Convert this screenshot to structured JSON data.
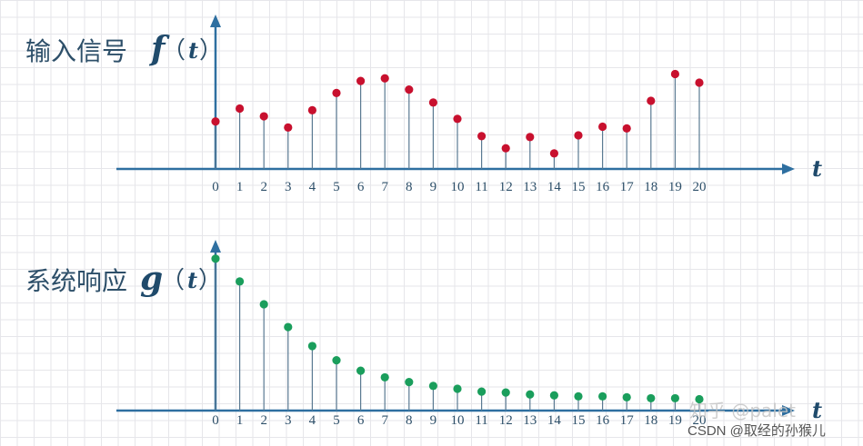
{
  "chart_data": [
    {
      "type": "stem",
      "title": "输入信号",
      "title_math": "f",
      "title_paren_open": "（",
      "title_var": "t",
      "title_paren_close": "）",
      "xlabel": "t",
      "x": [
        0,
        1,
        2,
        3,
        4,
        5,
        6,
        7,
        8,
        9,
        10,
        11,
        12,
        13,
        14,
        15,
        16,
        17,
        18,
        19,
        20
      ],
      "values": [
        5.5,
        7.0,
        6.1,
        4.8,
        6.8,
        8.8,
        10.2,
        10.5,
        9.2,
        7.7,
        5.8,
        3.8,
        2.4,
        3.7,
        1.8,
        3.9,
        4.9,
        4.7,
        7.9,
        11.0,
        10.0
      ],
      "ylim": [
        0,
        12
      ],
      "color": "#c8102e",
      "stem_color": "#5a7a92",
      "axis_color": "#2e6fa0",
      "grid": true
    },
    {
      "type": "stem",
      "title": "系统响应",
      "title_math": "g",
      "title_paren_open": "（",
      "title_var": "t",
      "title_paren_close": "）",
      "xlabel": "t",
      "x": [
        0,
        1,
        2,
        3,
        4,
        5,
        6,
        7,
        8,
        9,
        10,
        11,
        12,
        13,
        14,
        15,
        16,
        17,
        18,
        19,
        20
      ],
      "values": [
        16.0,
        13.6,
        11.2,
        8.8,
        6.8,
        5.3,
        4.2,
        3.5,
        3.0,
        2.6,
        2.3,
        2.0,
        1.9,
        1.7,
        1.6,
        1.5,
        1.5,
        1.4,
        1.3,
        1.3,
        1.2
      ],
      "ylim": [
        0,
        17
      ],
      "color": "#1a9e5c",
      "stem_color": "#5a7a92",
      "axis_color": "#2e6fa0",
      "grid": true
    }
  ],
  "watermarks": {
    "zhihu": "知乎 @palet",
    "csdn": "CSDN @取经的孙猴儿"
  }
}
